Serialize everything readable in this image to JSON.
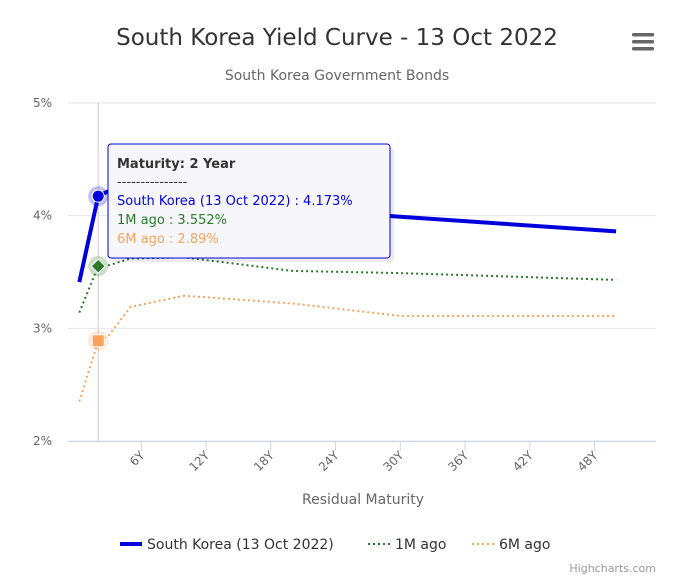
{
  "chart_data": {
    "type": "line",
    "title": "South Korea Yield Curve - 13 Oct 2022",
    "subtitle": "South Korea Government Bonds",
    "xlabel": "Residual Maturity",
    "ylabel": "",
    "x_unit": "years",
    "xlim": [
      -0.8,
      53.7
    ],
    "ylim": [
      2,
      5
    ],
    "x_ticks": [
      {
        "value": 6,
        "label": "6Y"
      },
      {
        "value": 12,
        "label": "12Y"
      },
      {
        "value": 18,
        "label": "18Y"
      },
      {
        "value": 24,
        "label": "24Y"
      },
      {
        "value": 30,
        "label": "30Y"
      },
      {
        "value": 36,
        "label": "36Y"
      },
      {
        "value": 42,
        "label": "42Y"
      },
      {
        "value": 48,
        "label": "48Y"
      }
    ],
    "y_ticks": [
      {
        "value": 2,
        "label": "2%"
      },
      {
        "value": 3,
        "label": "3%"
      },
      {
        "value": 4,
        "label": "4%"
      },
      {
        "value": 5,
        "label": "5%"
      }
    ],
    "grid": "horizontal",
    "legend_position": "bottom-center",
    "series": [
      {
        "name": "South Korea (13 Oct 2022)",
        "color": "#0000dd",
        "style": "solid",
        "marker": "circle",
        "points": [
          [
            0.25,
            3.41
          ],
          [
            2,
            4.173
          ],
          [
            3,
            4.22
          ],
          [
            5,
            4.25
          ],
          [
            10,
            4.21
          ],
          [
            20,
            4.06
          ],
          [
            30,
            3.99
          ],
          [
            50,
            3.86
          ]
        ]
      },
      {
        "name": "1M ago",
        "color": "#2a7a2a",
        "style": "dotted",
        "marker": "diamond",
        "points": [
          [
            0.25,
            3.14
          ],
          [
            2,
            3.552
          ],
          [
            3,
            3.56
          ],
          [
            5,
            3.62
          ],
          [
            10,
            3.63
          ],
          [
            20,
            3.51
          ],
          [
            30,
            3.49
          ],
          [
            50,
            3.43
          ]
        ]
      },
      {
        "name": "6M ago",
        "color": "#f7a35c",
        "style": "dotted",
        "marker": "square",
        "points": [
          [
            0.25,
            2.35
          ],
          [
            2,
            2.89
          ],
          [
            3,
            2.94
          ],
          [
            5,
            3.19
          ],
          [
            10,
            3.29
          ],
          [
            20,
            3.22
          ],
          [
            30,
            3.11
          ],
          [
            50,
            3.11
          ]
        ]
      }
    ],
    "tooltip": {
      "header": "Maturity: 2 Year",
      "separator": "---------------",
      "lines": [
        {
          "text": "South Korea (13 Oct 2022) : 4.173%",
          "color": "#0000dd"
        },
        {
          "text": "1M ago : 3.552%",
          "color": "#2a7a2a"
        },
        {
          "text": "6M ago : 2.89%",
          "color": "#f7a35c"
        }
      ],
      "hover_x": 2
    },
    "credits": "Highcharts.com"
  },
  "icons": {
    "menu": "hamburger-menu-icon"
  }
}
